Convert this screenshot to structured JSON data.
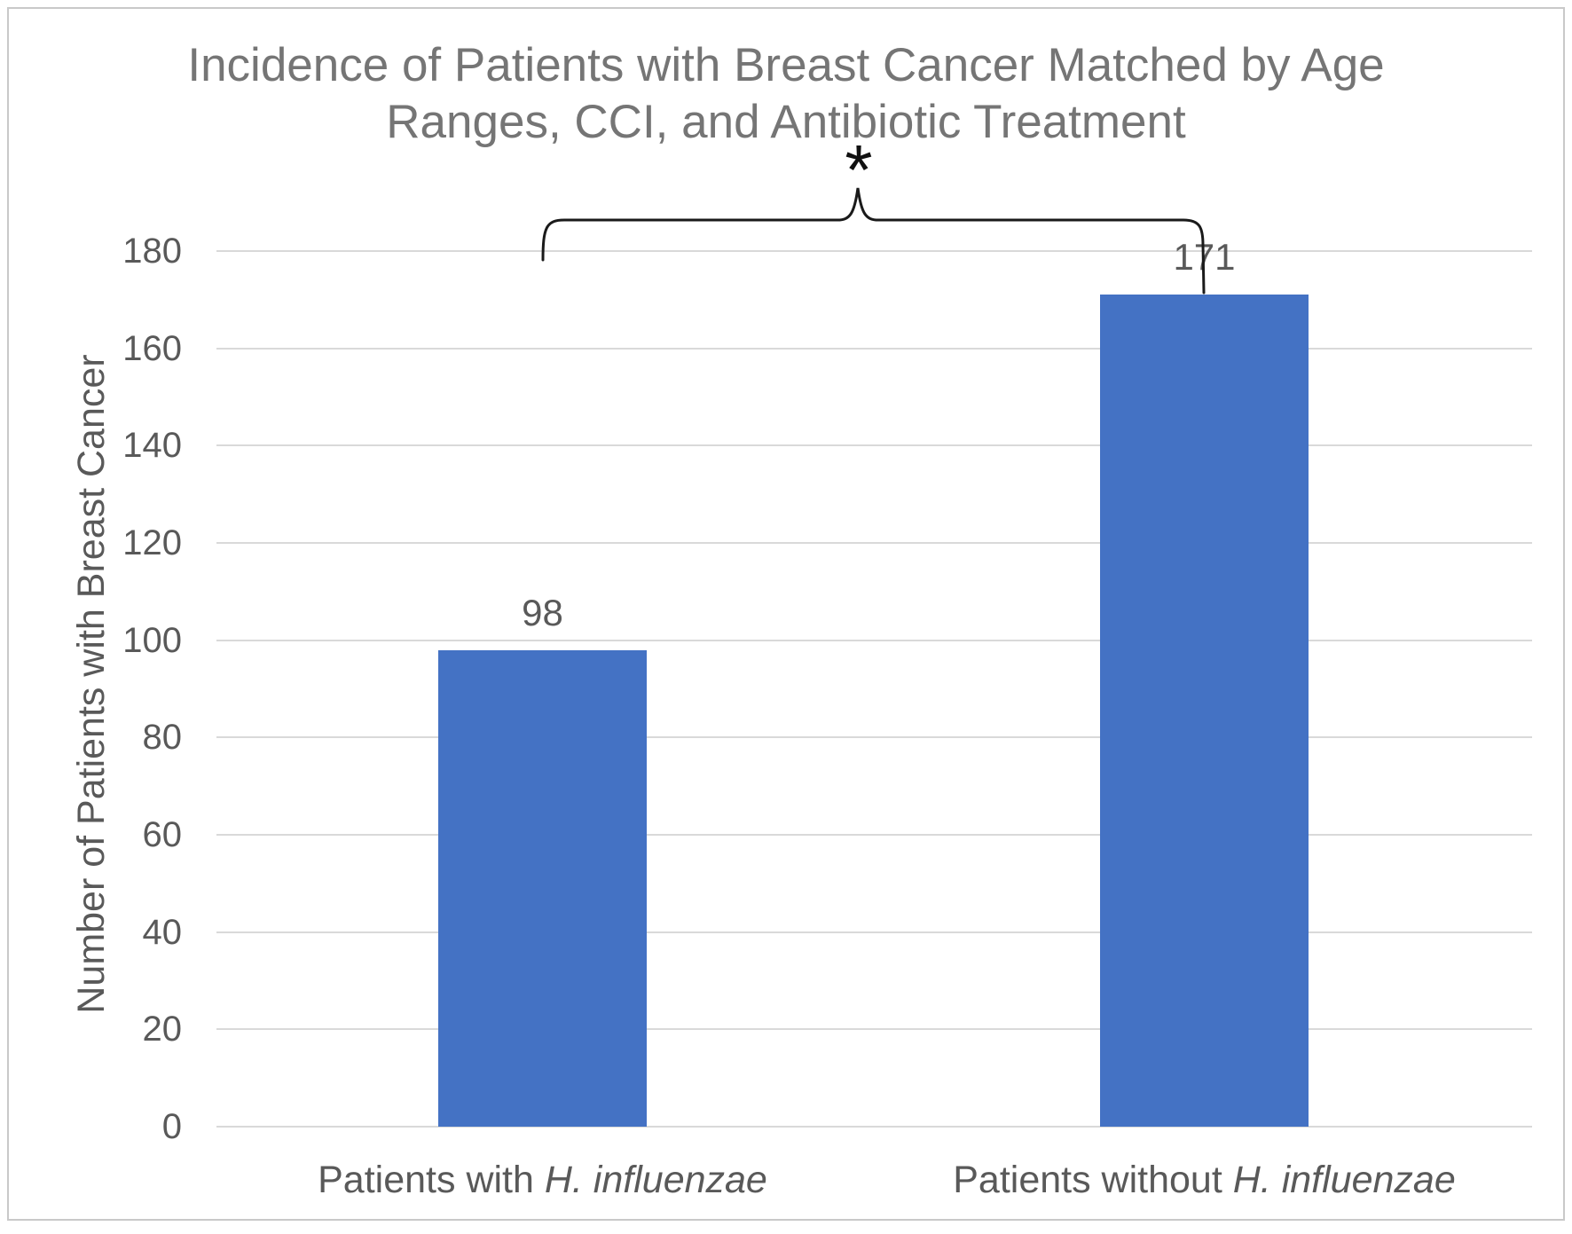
{
  "chart": {
    "title_lines": [
      "Incidence of Patients with Breast Cancer Matched by Age",
      "Ranges, CCI, and Antibiotic Treatment"
    ],
    "significance_symbol": "*"
  },
  "chart_data": {
    "type": "bar",
    "title": "Incidence of Patients with Breast Cancer Matched by Age Ranges, CCI, and Antibiotic Treatment",
    "xlabel": "",
    "ylabel": "Number of Patients with Breast Cancer",
    "categories": [
      "Patients with H. influenzae",
      "Patients without H. influenzae"
    ],
    "categories_rich": [
      {
        "prefix": "Patients with ",
        "italic": "H. influenzae"
      },
      {
        "prefix": "Patients without ",
        "italic": "H. influenzae"
      }
    ],
    "values": [
      98,
      171
    ],
    "data_labels": [
      "98",
      "171"
    ],
    "ylim": [
      0,
      180
    ],
    "yticks": [
      0,
      20,
      40,
      60,
      80,
      100,
      120,
      140,
      160,
      180
    ],
    "grid": true,
    "legend": false,
    "bar_color": "#4472c4",
    "annotation": {
      "symbol": "*"
    }
  },
  "colors": {
    "title_text": "#757575",
    "axis_text": "#595959",
    "gridline": "#d9d9d9",
    "bar": "#4472c4",
    "bracket": "#1a1a1a",
    "frame_border": "#c9c9c9"
  }
}
